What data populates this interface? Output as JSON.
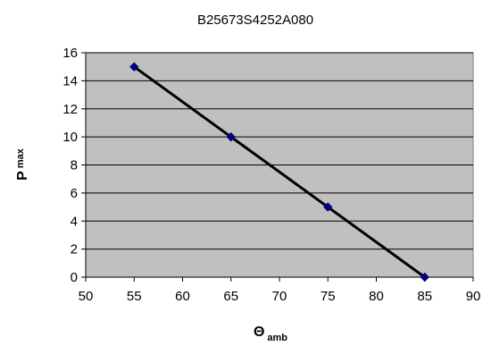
{
  "chart_data": {
    "type": "line",
    "title": "B25673S4252A080",
    "xlabel": {
      "main": "Θ",
      "sub": "amb"
    },
    "ylabel": {
      "main": "P",
      "sub": "max"
    },
    "xlim": [
      50,
      90
    ],
    "ylim": [
      0,
      16
    ],
    "xticks": [
      50,
      55,
      60,
      65,
      70,
      75,
      80,
      85,
      90
    ],
    "yticks": [
      0,
      2,
      4,
      6,
      8,
      10,
      12,
      14,
      16
    ],
    "grid": "horizontal",
    "legend": "none",
    "series": [
      {
        "x": [
          55,
          65,
          75,
          85
        ],
        "y": [
          15,
          10,
          5,
          0
        ]
      }
    ],
    "colors": {
      "plot_background": "#c0c0c0",
      "line": "#000000",
      "marker": "#000080",
      "grid": "#000000"
    }
  }
}
